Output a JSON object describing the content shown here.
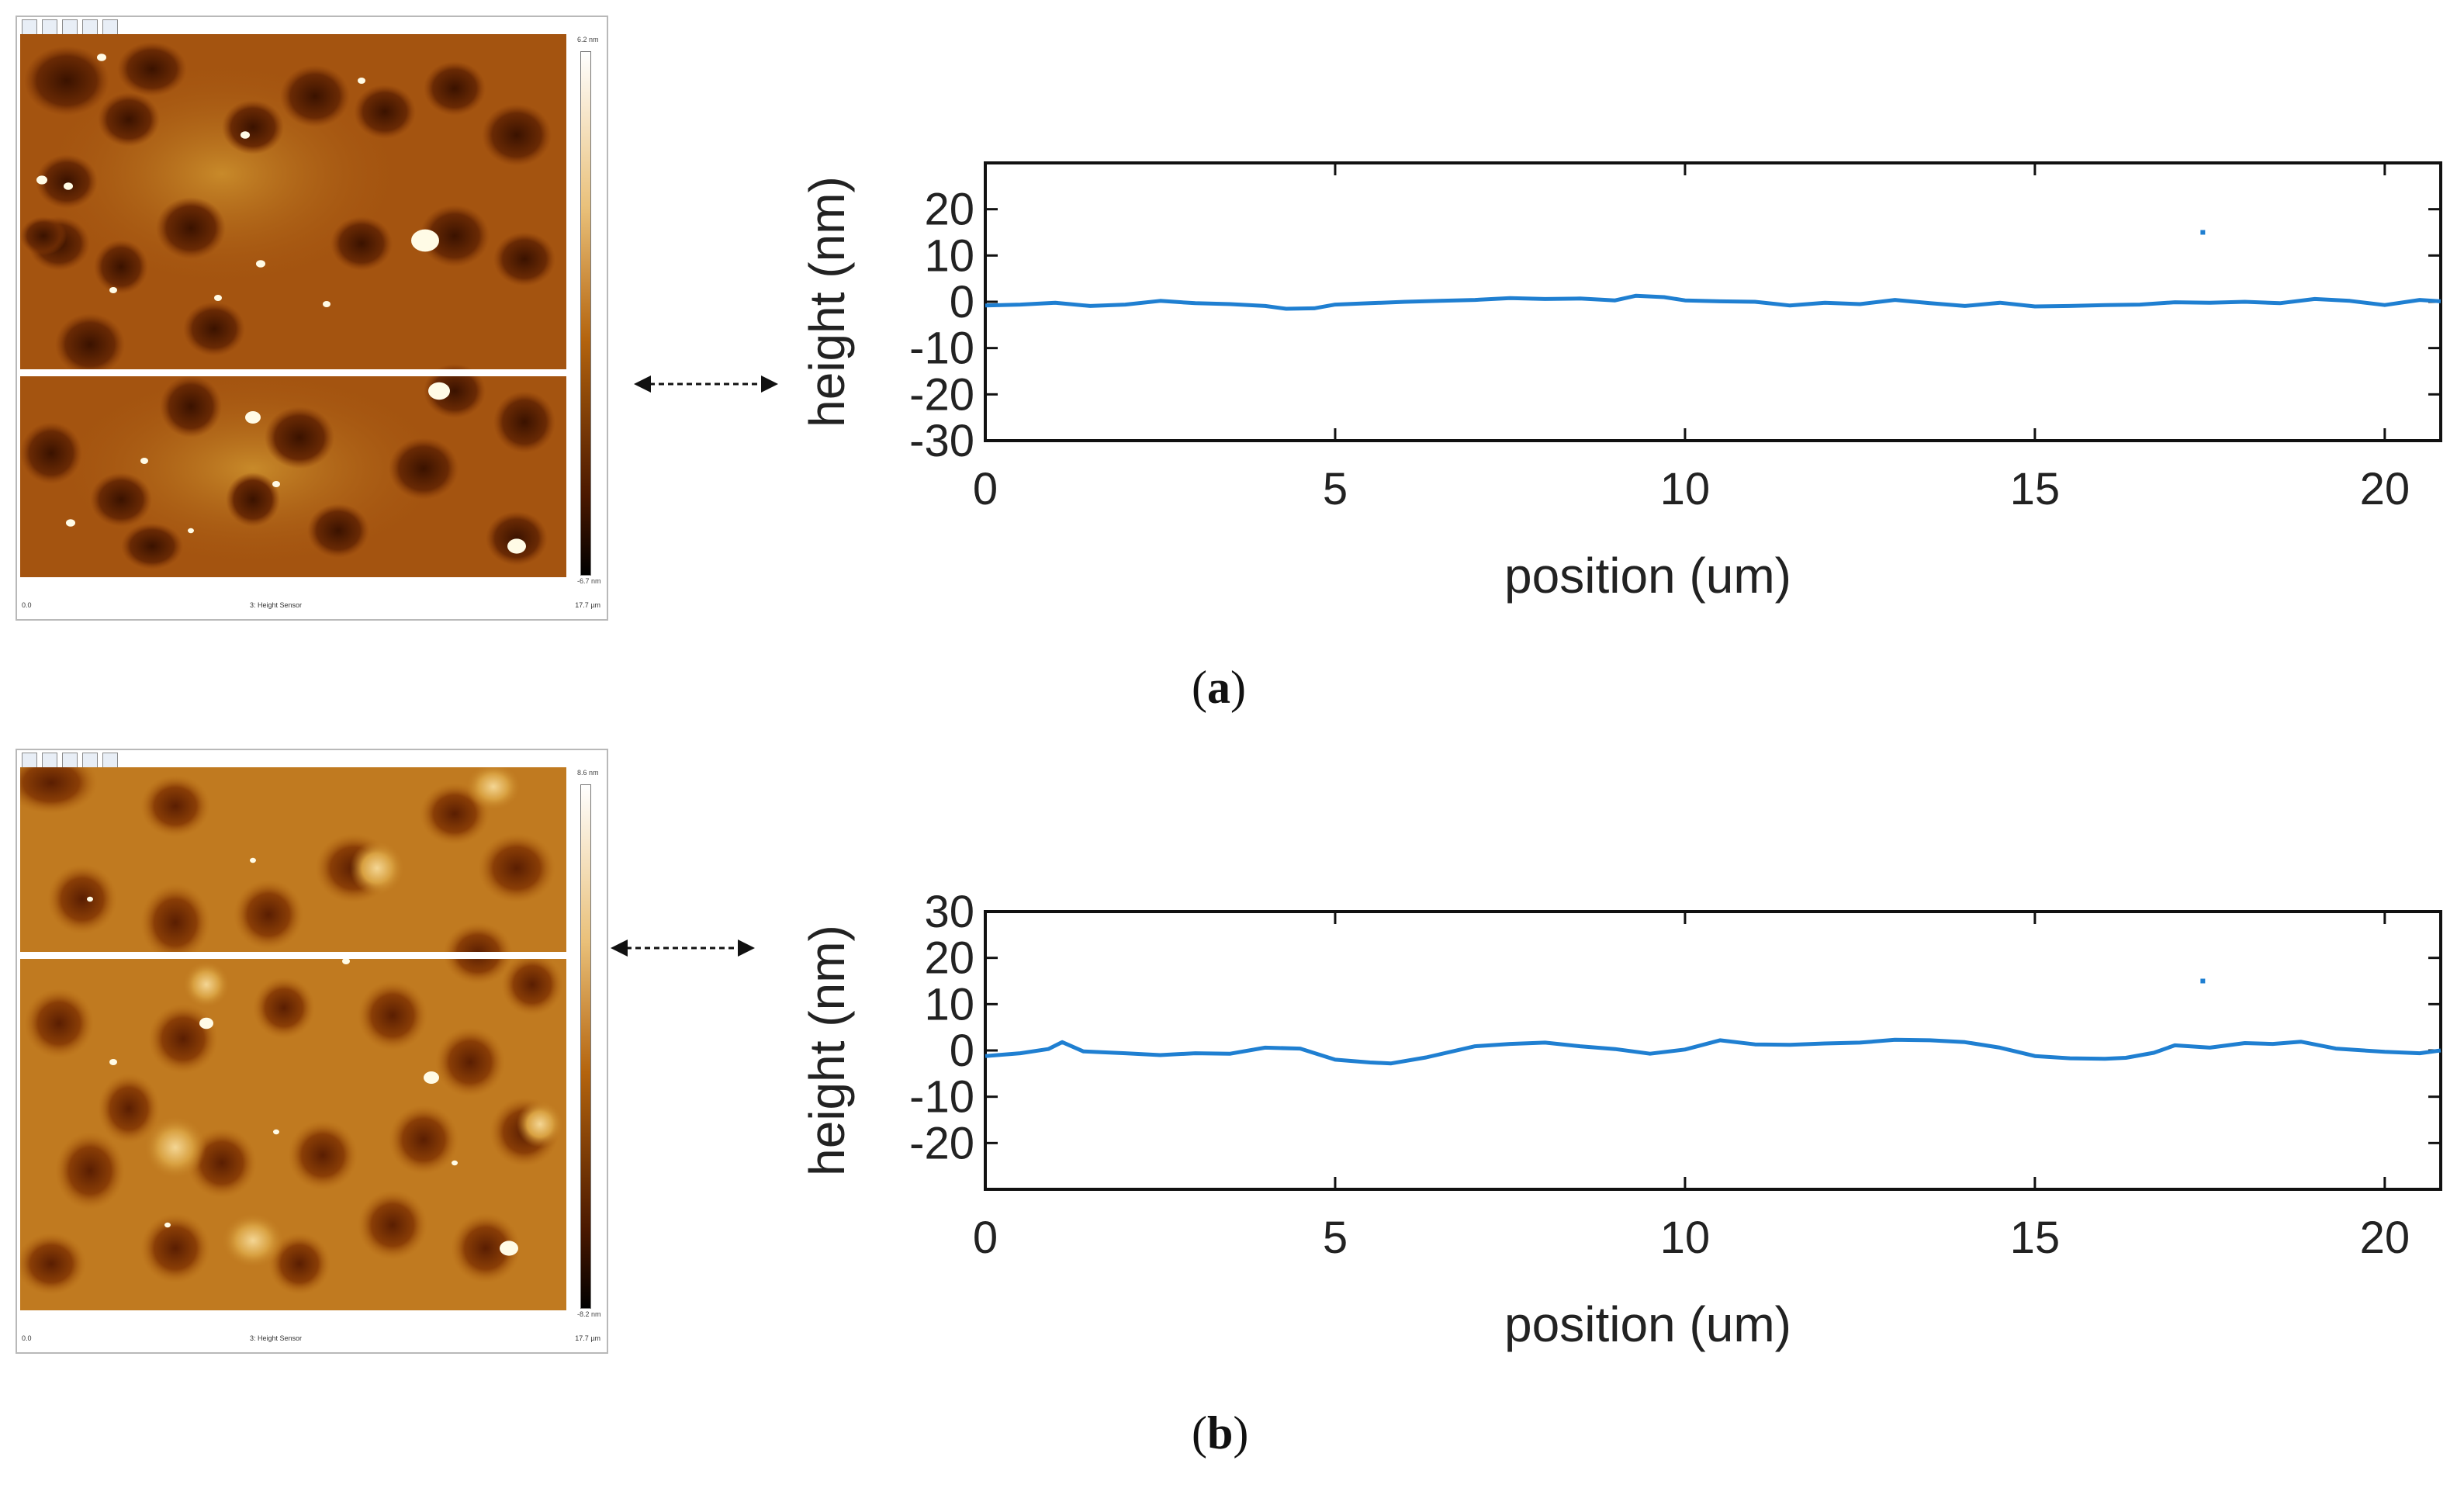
{
  "figure": {
    "panel_a_label": {
      "open": "(",
      "letter": "a",
      "close": ")"
    },
    "panel_b_label": {
      "open": "(",
      "letter": "b",
      "close": ")"
    }
  },
  "afm_panels": [
    {
      "bottom_left": "0.0",
      "bottom_center": "3: Height Sensor",
      "bottom_right": "17.7 µm",
      "colorbar_top": "6.2 nm",
      "colorbar_bottom": "-6.7 nm"
    },
    {
      "bottom_left": "0.0",
      "bottom_center": "3: Height Sensor",
      "bottom_right": "17.7 µm",
      "colorbar_top": "8.6 nm",
      "colorbar_bottom": "-8.2 nm"
    }
  ],
  "colors": {
    "line": "#1f7fd1",
    "afm_dark": "#2a0c00",
    "afm_mid": "#9c4a06",
    "afm_light": "#e2a23a",
    "afm_highlight": "#fff8e0"
  },
  "chart_data": [
    {
      "type": "line",
      "title": "",
      "xlabel": "position (um)",
      "ylabel": "height (nm)",
      "xlim": [
        0,
        20.8
      ],
      "ylim": [
        -30,
        30
      ],
      "xticks": [
        0,
        5,
        10,
        15,
        20
      ],
      "yticks": [
        -30,
        -20,
        -10,
        0,
        10,
        20
      ],
      "legend_marker": {
        "x": 17.4,
        "y": 15
      },
      "series": [
        {
          "name": "profile",
          "x": [
            0,
            0.5,
            1.0,
            1.5,
            2.0,
            2.5,
            3.0,
            3.5,
            4.0,
            4.3,
            4.7,
            5.0,
            5.5,
            6.0,
            6.5,
            7.0,
            7.5,
            8.0,
            8.5,
            9.0,
            9.3,
            9.7,
            10.0,
            10.5,
            11.0,
            11.5,
            12.0,
            12.5,
            13.0,
            13.5,
            14.0,
            14.5,
            15.0,
            15.5,
            16.0,
            16.5,
            17.0,
            17.5,
            18.0,
            18.5,
            19.0,
            19.5,
            20.0,
            20.5,
            20.8
          ],
          "y": [
            -0.8,
            -0.6,
            -0.2,
            -0.9,
            -0.6,
            0.2,
            -0.3,
            -0.5,
            -0.9,
            -1.5,
            -1.4,
            -0.6,
            -0.3,
            0.0,
            0.2,
            0.4,
            0.8,
            0.6,
            0.7,
            0.3,
            1.3,
            1.0,
            0.3,
            0.1,
            0.0,
            -0.8,
            -0.2,
            -0.5,
            0.4,
            -0.3,
            -0.9,
            -0.2,
            -1.0,
            -0.9,
            -0.7,
            -0.6,
            -0.1,
            -0.2,
            0.0,
            -0.3,
            0.6,
            0.2,
            -0.7,
            0.4,
            0.1
          ]
        }
      ]
    },
    {
      "type": "line",
      "title": "",
      "xlabel": "position (um)",
      "ylabel": "height (nm)",
      "xlim": [
        0,
        20.8
      ],
      "ylim": [
        -30,
        30
      ],
      "xticks": [
        0,
        5,
        10,
        15,
        20
      ],
      "yticks": [
        -20,
        -10,
        0,
        10,
        20,
        30
      ],
      "legend_marker": {
        "x": 17.4,
        "y": 15
      },
      "series": [
        {
          "name": "profile",
          "x": [
            0,
            0.5,
            0.9,
            1.1,
            1.4,
            2.0,
            2.5,
            3.0,
            3.5,
            4.0,
            4.5,
            5.0,
            5.5,
            5.8,
            6.3,
            7.0,
            7.5,
            8.0,
            8.5,
            9.0,
            9.5,
            10.0,
            10.5,
            11.0,
            11.5,
            12.0,
            12.5,
            13.0,
            13.5,
            14.0,
            14.5,
            15.0,
            15.5,
            16.0,
            16.3,
            16.7,
            17.0,
            17.5,
            18.0,
            18.4,
            18.8,
            19.3,
            20.0,
            20.5,
            20.8
          ],
          "y": [
            -1.2,
            -0.6,
            0.3,
            1.8,
            -0.2,
            -0.6,
            -1.0,
            -0.6,
            -0.7,
            0.6,
            0.4,
            -2.0,
            -2.6,
            -2.8,
            -1.5,
            0.9,
            1.4,
            1.7,
            0.9,
            0.3,
            -0.7,
            0.2,
            2.2,
            1.3,
            1.2,
            1.5,
            1.7,
            2.3,
            2.2,
            1.8,
            0.6,
            -1.2,
            -1.7,
            -1.8,
            -1.6,
            -0.5,
            1.1,
            0.6,
            1.6,
            1.4,
            1.9,
            0.4,
            -0.3,
            -0.6,
            0.0
          ]
        }
      ]
    }
  ]
}
